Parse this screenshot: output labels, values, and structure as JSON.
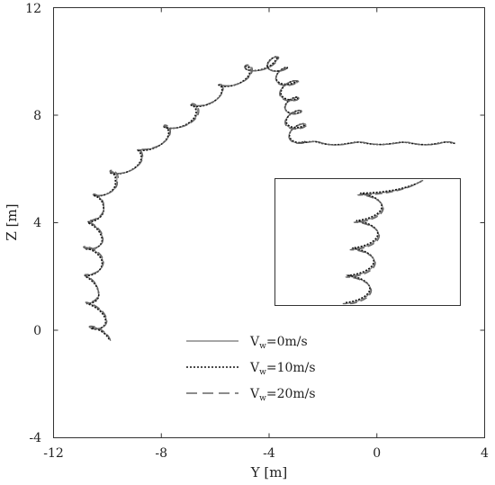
{
  "chart_data": {
    "type": "line",
    "xlabel": "Y [m]",
    "ylabel": "Z [m]",
    "xlim": [
      -12,
      4
    ],
    "ylim": [
      -4,
      12
    ],
    "x_ticks": [
      "-12",
      "-8",
      "-4",
      "0",
      "4"
    ],
    "y_ticks": [
      "-4",
      "0",
      "4",
      "8",
      "12"
    ],
    "grid": false,
    "legend_position": "lower-center",
    "series": [
      {
        "name": "V",
        "subscript": "w",
        "suffix": "=0m/s",
        "style": "solid",
        "color": "#888888"
      },
      {
        "name": "V",
        "subscript": "w",
        "suffix": "=10m/s",
        "style": "dotted",
        "color": "#111111"
      },
      {
        "name": "V",
        "subscript": "w",
        "suffix": "=20m/s",
        "style": "dashed",
        "color": "#666666"
      }
    ],
    "trajectory_waypoints": [
      [
        -10.2,
        -0.35
      ],
      [
        -10.4,
        0.5
      ],
      [
        -10.6,
        1.5
      ],
      [
        -10.5,
        2.6
      ],
      [
        -10.5,
        3.5
      ],
      [
        -10.4,
        4.6
      ],
      [
        -10.0,
        5.5
      ],
      [
        -9.0,
        6.3
      ],
      [
        -8.0,
        7.2
      ],
      [
        -7.0,
        8.0
      ],
      [
        -6.0,
        8.8
      ],
      [
        -5.0,
        9.5
      ],
      [
        -4.0,
        10.05
      ],
      [
        -3.6,
        9.7
      ],
      [
        -3.3,
        9.2
      ],
      [
        -3.2,
        8.6
      ],
      [
        -3.1,
        8.1
      ],
      [
        -3.0,
        7.6
      ],
      [
        -2.9,
        7.0
      ],
      [
        -2.0,
        6.95
      ],
      [
        -1.0,
        6.95
      ],
      [
        0.0,
        6.95
      ],
      [
        1.0,
        6.95
      ],
      [
        2.0,
        6.95
      ],
      [
        2.9,
        6.95
      ]
    ],
    "inset": {
      "type": "line",
      "detail": "zoomed view of the trajectory oscillations"
    }
  }
}
